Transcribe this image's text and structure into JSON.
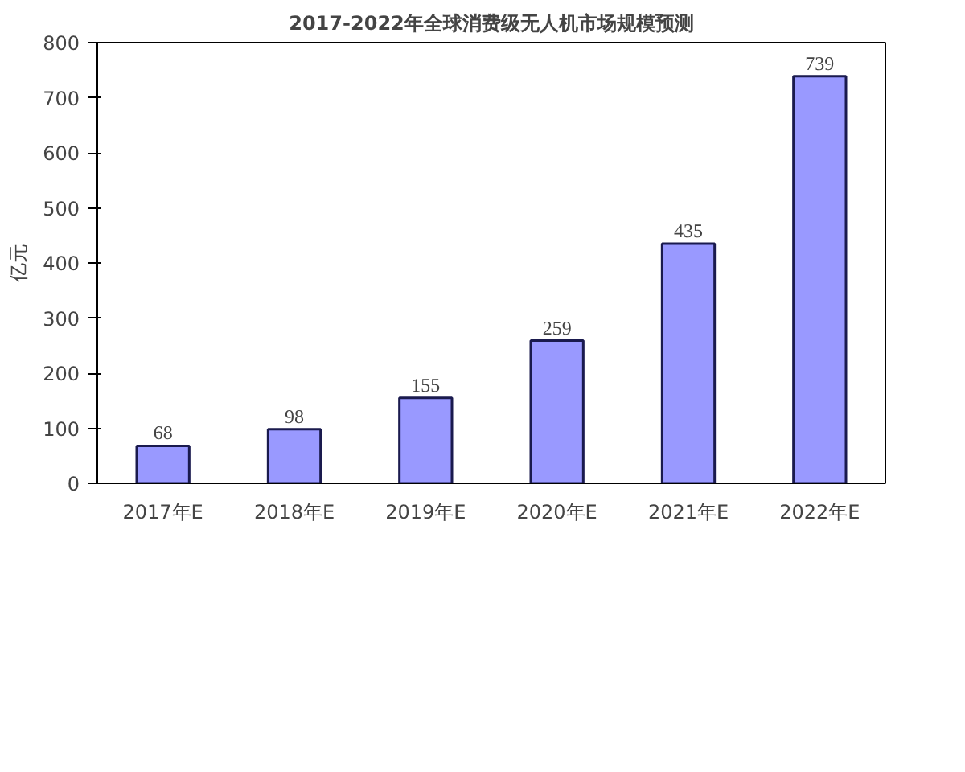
{
  "chart_data": {
    "type": "bar",
    "title": "2017-2022年全球消费级无人机市场规模预测",
    "ylabel": "亿元",
    "categories": [
      "2017年E",
      "2018年E",
      "2019年E",
      "2020年E",
      "2021年E",
      "2022年E"
    ],
    "values": [
      68,
      98,
      155,
      259,
      435,
      739
    ],
    "color": "#9999ff",
    "ylim": [
      0,
      800
    ],
    "yticks": [
      0,
      100,
      200,
      300,
      400,
      500,
      600,
      700,
      800
    ],
    "grid": false,
    "data_labels": true
  }
}
